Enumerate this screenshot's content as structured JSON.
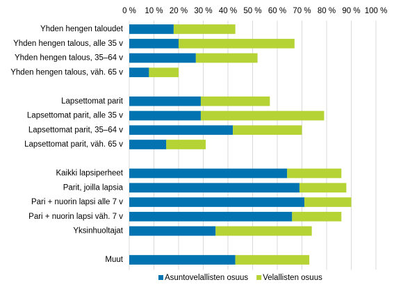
{
  "chart_data": {
    "type": "stacked-barh",
    "categories": [
      "Yhden hengen taloudet",
      "Yhden hengen talous, alle 35 v",
      "Yhden hengen talous, 35–64 v",
      "Yhden hengen talous, väh. 65 v",
      null,
      "Lapsettomat parit",
      "Lapsettomat parit, alle 35 v",
      "Lapsettomat parit, 35–64 v",
      "Lapsettomat parit, väh. 65 v",
      null,
      "Kaikki lapsiperheet",
      "Parit, joilla lapsia",
      "Pari + nuorin lapsi alle 7 v",
      "Pari + nuorin lapsi väh. 7 v",
      "Yksinhuoltajat",
      null,
      "Muut"
    ],
    "series": [
      {
        "name": "Asuntovelallisten osuus",
        "color": "#0073b0",
        "values": [
          18,
          20,
          27,
          8,
          null,
          29,
          29,
          42,
          15,
          null,
          64,
          69,
          71,
          66,
          35,
          null,
          43
        ]
      },
      {
        "name": "Velallisten osuus",
        "color": "#b5d334",
        "values": [
          25,
          47,
          25,
          12,
          null,
          28,
          50,
          28,
          16,
          null,
          22,
          19,
          19,
          20,
          39,
          null,
          30
        ]
      }
    ],
    "xlim": [
      0,
      100
    ],
    "xticks": [
      {
        "value": 0,
        "label": "0 %"
      },
      {
        "value": 10,
        "label": "10 %"
      },
      {
        "value": 20,
        "label": "20 %"
      },
      {
        "value": 30,
        "label": "30 %"
      },
      {
        "value": 40,
        "label": "40 %"
      },
      {
        "value": 50,
        "label": "50 %"
      },
      {
        "value": 60,
        "label": "60 %"
      },
      {
        "value": 70,
        "label": "70 %"
      },
      {
        "value": 80,
        "label": "80 %"
      },
      {
        "value": 90,
        "label": "90 %"
      },
      {
        "value": 100,
        "label": "100 %"
      }
    ],
    "grid": true,
    "legend": "bottom"
  }
}
